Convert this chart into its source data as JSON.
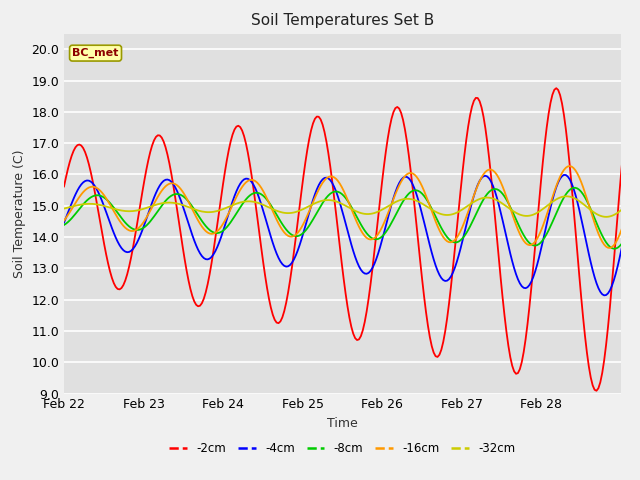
{
  "title": "Soil Temperatures Set B",
  "xlabel": "Time",
  "ylabel": "Soil Temperature (C)",
  "ylim": [
    9.0,
    20.5
  ],
  "yticks": [
    9.0,
    10.0,
    11.0,
    12.0,
    13.0,
    14.0,
    15.0,
    16.0,
    17.0,
    18.0,
    19.0,
    20.0
  ],
  "annotation": "BC_met",
  "fig_facecolor": "#f0f0f0",
  "ax_facecolor": "#e0e0e0",
  "series_colors": [
    "#ff0000",
    "#0000ff",
    "#00cc00",
    "#ff9900",
    "#cccc00"
  ],
  "series_labels": [
    "-2cm",
    "-4cm",
    "-8cm",
    "-16cm",
    "-32cm"
  ],
  "xtick_positions": [
    0,
    1,
    2,
    3,
    4,
    5,
    6
  ],
  "xtick_labels": [
    "Feb 22",
    "Feb 23",
    "Feb 24",
    "Feb 25",
    "Feb 26",
    "Feb 27",
    "Feb 28"
  ],
  "xlim": [
    0,
    7.0
  ],
  "n_points": 300,
  "total_days": 7.2,
  "series_2cm": {
    "base": 14.8,
    "trend": -0.12,
    "amp0": 2.1,
    "amp_rate": 0.42,
    "phase": 0.4
  },
  "series_4cm": {
    "base": 14.75,
    "trend": -0.1,
    "amp0": 1.05,
    "amp_rate": 0.13,
    "phase": -0.28
  },
  "series_8cm": {
    "base": 14.82,
    "trend": -0.03,
    "amp0": 0.5,
    "amp_rate": 0.07,
    "phase": -1.05
  },
  "series_16cm": {
    "base": 14.92,
    "trend": 0.01,
    "amp0": 0.65,
    "amp_rate": 0.1,
    "phase": -0.65
  },
  "series_32cm": {
    "base": 14.95,
    "trend": 0.005,
    "amp0": 0.1,
    "amp_rate": 0.035,
    "phase": -0.4
  }
}
